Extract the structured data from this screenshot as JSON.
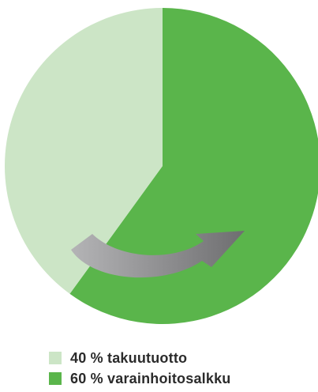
{
  "chart_data": {
    "type": "pie",
    "slices": [
      {
        "label": "40 % takuutuotto",
        "value": 40,
        "color": "#cce5c6"
      },
      {
        "label": "60 % varainhoitosalkku",
        "value": 60,
        "color": "#5ab54b"
      }
    ],
    "start": "12 o'clock",
    "direction": "clockwise",
    "legend_position": "bottom-left"
  },
  "colors": {
    "arrow_light": "#b4b4b6",
    "arrow_dark": "#6e6e70",
    "background": "#ffffff"
  }
}
